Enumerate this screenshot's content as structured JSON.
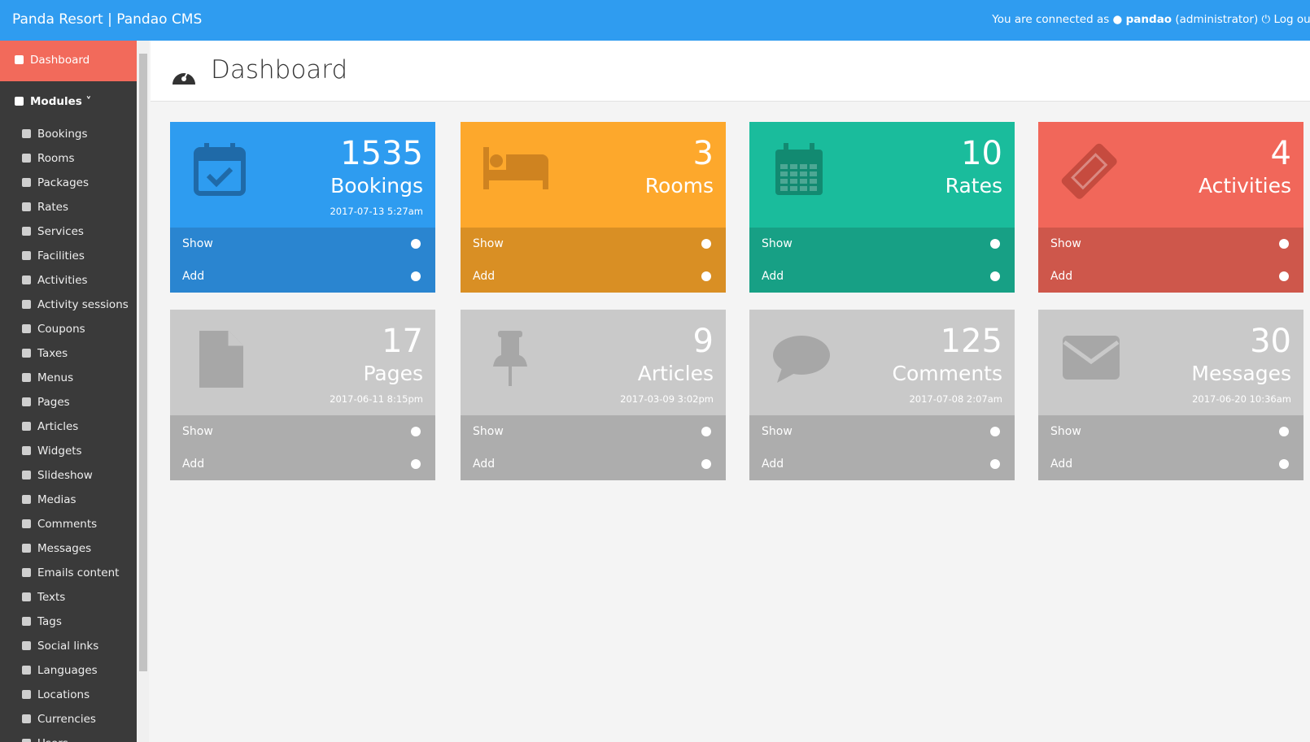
{
  "header": {
    "brand": "Panda Resort | Pandao CMS",
    "connected": "You are connected as",
    "user": "pandao",
    "role": "(administrator)",
    "logout": "Log out"
  },
  "sidebar": {
    "active": "Dashboard",
    "section": "Modules",
    "items": [
      "Bookings",
      "Rooms",
      "Packages",
      "Rates",
      "Services",
      "Facilities",
      "Activities",
      "Activity sessions",
      "Coupons",
      "Taxes",
      "Menus",
      "Pages",
      "Articles",
      "Widgets",
      "Slideshow",
      "Medias",
      "Comments",
      "Messages",
      "Emails content",
      "Texts",
      "Tags",
      "Social links",
      "Languages",
      "Locations",
      "Currencies",
      "Users"
    ]
  },
  "page": {
    "title": "Dashboard"
  },
  "cards": [
    {
      "count": 1535,
      "label": "Bookings",
      "date": "2017-07-13 5:27am",
      "show": "Show",
      "add": "Add"
    },
    {
      "count": 3,
      "label": "Rooms",
      "show": "Show",
      "add": "Add"
    },
    {
      "count": 10,
      "label": "Rates",
      "show": "Show",
      "add": "Add"
    },
    {
      "count": 4,
      "label": "Activities",
      "show": "Show",
      "add": "Add"
    },
    {
      "count": 17,
      "label": "Pages",
      "date": "2017-06-11 8:15pm",
      "show": "Show",
      "add": "Add"
    },
    {
      "count": 9,
      "label": "Articles",
      "date": "2017-03-09 3:02pm",
      "show": "Show",
      "add": "Add"
    },
    {
      "count": 125,
      "label": "Comments",
      "date": "2017-07-08 2:07am",
      "show": "Show",
      "add": "Add"
    },
    {
      "count": 30,
      "label": "Messages",
      "date": "2017-06-20 10:36am",
      "show": "Show",
      "add": "Add"
    }
  ]
}
